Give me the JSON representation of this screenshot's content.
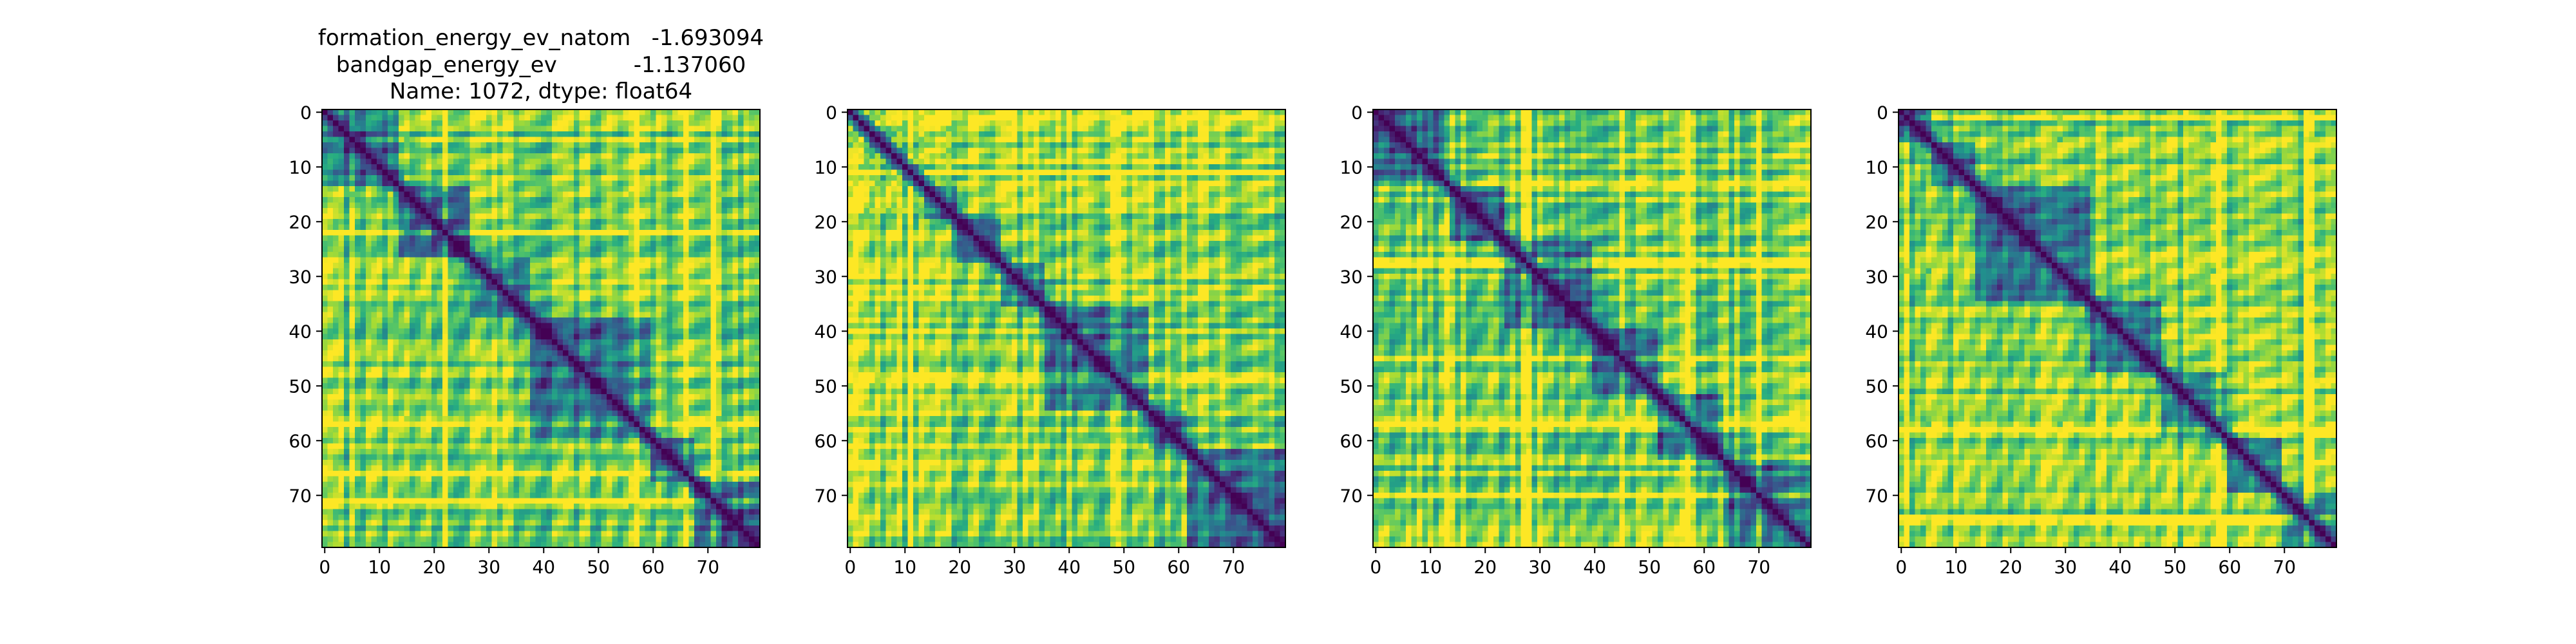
{
  "title_lines": [
    "formation_energy_ev_natom   -1.693094",
    "bandgap_energy_ev           -1.137060",
    "Name: 1072, dtype: float64"
  ],
  "chart_data": [
    {
      "type": "heatmap",
      "colormap": "viridis",
      "matrix_size": 80,
      "diagonal_value": 0.0,
      "value_range": [
        0,
        1
      ],
      "structure": {
        "block_boundaries": [
          14,
          27,
          38,
          60,
          68
        ],
        "high_value_bands": [
          5,
          15,
          22,
          56,
          57,
          66,
          71,
          72
        ]
      },
      "xticks": [
        0,
        10,
        20,
        30,
        40,
        50,
        60,
        70
      ],
      "yticks": [
        0,
        10,
        20,
        30,
        40,
        50,
        60,
        70
      ],
      "xlim": [
        -0.5,
        79.5
      ],
      "ylim": [
        79.5,
        -0.5
      ],
      "grid": false
    },
    {
      "type": "heatmap",
      "colormap": "viridis",
      "matrix_size": 80,
      "diagonal_value": 0.0,
      "value_range": [
        0,
        1
      ],
      "structure": {
        "block_boundaries": [
          2,
          4,
          6,
          8,
          10,
          12,
          14,
          20,
          28,
          36,
          55,
          62
        ],
        "high_value_bands": [
          1,
          3,
          5,
          7,
          9,
          11,
          13,
          18,
          48,
          49
        ]
      },
      "xticks": [
        0,
        10,
        20,
        30,
        40,
        50,
        60,
        70
      ],
      "yticks": [
        0,
        10,
        20,
        30,
        40,
        50,
        60,
        70
      ],
      "xlim": [
        -0.5,
        79.5
      ],
      "ylim": [
        79.5,
        -0.5
      ],
      "grid": false
    },
    {
      "type": "heatmap",
      "colormap": "viridis",
      "matrix_size": 80,
      "diagonal_value": 0.0,
      "value_range": [
        0,
        1
      ],
      "structure": {
        "block_boundaries": [
          14,
          24,
          40,
          52,
          64
        ],
        "high_value_bands": [
          13,
          27,
          28,
          45,
          56,
          57,
          70
        ]
      },
      "xticks": [
        0,
        10,
        20,
        30,
        40,
        50,
        60,
        70
      ],
      "yticks": [
        0,
        10,
        20,
        30,
        40,
        50,
        60,
        70
      ],
      "xlim": [
        -0.5,
        79.5
      ],
      "ylim": [
        79.5,
        -0.5
      ],
      "grid": false
    },
    {
      "type": "heatmap",
      "colormap": "viridis",
      "matrix_size": 80,
      "diagonal_value": 0.0,
      "value_range": [
        0,
        1
      ],
      "structure": {
        "block_boundaries": [
          6,
          14,
          35,
          48,
          60,
          70
        ],
        "high_value_bands": [
          1,
          5,
          29,
          57,
          58,
          74,
          75
        ]
      },
      "xticks": [
        0,
        10,
        20,
        30,
        40,
        50,
        60,
        70
      ],
      "yticks": [
        0,
        10,
        20,
        30,
        40,
        50,
        60,
        70
      ],
      "xlim": [
        -0.5,
        79.5
      ],
      "ylim": [
        79.5,
        -0.5
      ],
      "grid": false
    }
  ]
}
